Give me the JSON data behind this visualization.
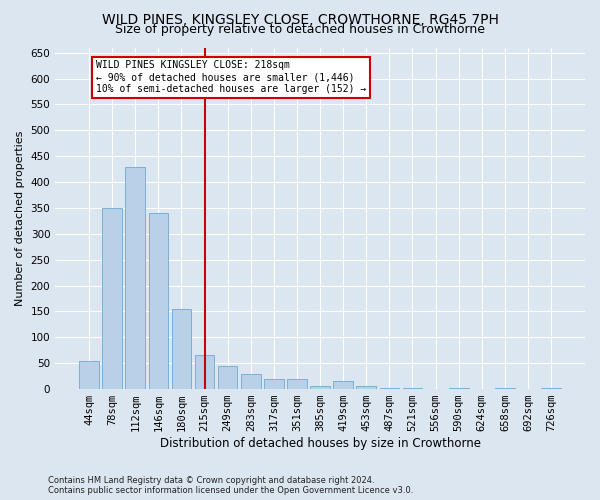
{
  "title": "WILD PINES, KINGSLEY CLOSE, CROWTHORNE, RG45 7PH",
  "subtitle": "Size of property relative to detached houses in Crowthorne",
  "xlabel": "Distribution of detached houses by size in Crowthorne",
  "ylabel": "Number of detached properties",
  "categories": [
    "44sqm",
    "78sqm",
    "112sqm",
    "146sqm",
    "180sqm",
    "215sqm",
    "249sqm",
    "283sqm",
    "317sqm",
    "351sqm",
    "385sqm",
    "419sqm",
    "453sqm",
    "487sqm",
    "521sqm",
    "556sqm",
    "590sqm",
    "624sqm",
    "658sqm",
    "692sqm",
    "726sqm"
  ],
  "values": [
    55,
    350,
    430,
    340,
    155,
    65,
    45,
    30,
    20,
    20,
    5,
    15,
    5,
    3,
    3,
    0,
    3,
    0,
    3,
    0,
    3
  ],
  "bar_color": "#b8d0e8",
  "bar_edge_color": "#6fa8d0",
  "background_color": "#dce6f0",
  "vline_color": "#cc0000",
  "annotation_text": "WILD PINES KINGSLEY CLOSE: 218sqm\n← 90% of detached houses are smaller (1,446)\n10% of semi-detached houses are larger (152) →",
  "annotation_box_color": "#ffffff",
  "annotation_box_edge": "#cc0000",
  "footnote": "Contains HM Land Registry data © Crown copyright and database right 2024.\nContains public sector information licensed under the Open Government Licence v3.0.",
  "ylim": [
    0,
    660
  ],
  "yticks": [
    0,
    50,
    100,
    150,
    200,
    250,
    300,
    350,
    400,
    450,
    500,
    550,
    600,
    650
  ],
  "title_fontsize": 10,
  "subtitle_fontsize": 9,
  "tick_fontsize": 7.5,
  "ylabel_fontsize": 8,
  "xlabel_fontsize": 8.5,
  "footnote_fontsize": 6
}
